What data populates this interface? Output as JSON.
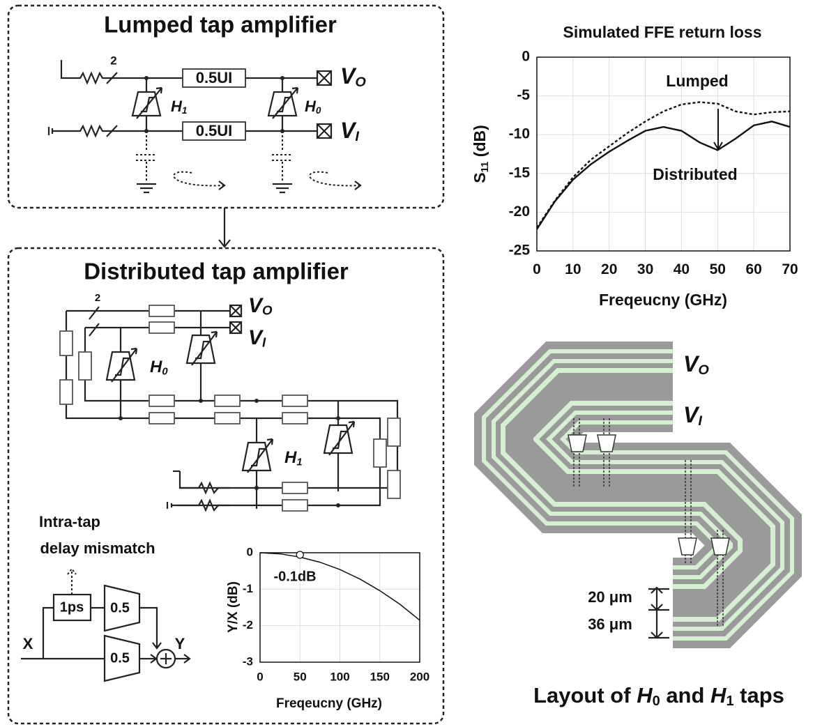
{
  "lumped": {
    "title": "Lumped tap amplifier",
    "bits": "2",
    "delay_top": "0.5UI",
    "delay_bottom": "0.5UI",
    "vo": [
      "V",
      "O"
    ],
    "vi": [
      "V",
      "I"
    ],
    "h1": [
      "H",
      "1"
    ],
    "h0": [
      "H",
      "0"
    ]
  },
  "distributed": {
    "title": "Distributed tap amplifier",
    "bits": "2",
    "vo": [
      "V",
      "O"
    ],
    "vi": [
      "V",
      "I"
    ],
    "h0": [
      "H",
      "0"
    ],
    "h1": [
      "H",
      "1"
    ]
  },
  "mismatch": {
    "caption": [
      "Intra-tap",
      "delay mismatch"
    ],
    "delay": "1ps",
    "gain_top": "0.5",
    "gain_bottom": "0.5",
    "input": "X",
    "output": "Y"
  },
  "layout": {
    "vo": [
      "V",
      "O"
    ],
    "vi": [
      "V",
      "I"
    ],
    "spacing_top": "20 μm",
    "spacing_bottom": "36 μm",
    "title": [
      "Layout of ",
      "H",
      "0",
      " and ",
      "H",
      "1",
      " taps"
    ]
  },
  "chart_data": [
    {
      "type": "line",
      "title": "Simulated FFE return loss",
      "xlabel": "Freqeucny (GHz)",
      "ylabel": [
        "S",
        "11",
        " (dB)"
      ],
      "x": [
        0,
        5,
        10,
        15,
        20,
        25,
        30,
        35,
        40,
        45,
        50,
        55,
        60,
        65,
        70
      ],
      "series": [
        {
          "name": "Lumped",
          "color": "#111111",
          "dashed": true,
          "values": [
            -22,
            -18.5,
            -15.5,
            -13.2,
            -11.5,
            -9.8,
            -8.3,
            -7,
            -6.1,
            -5.8,
            -6,
            -7,
            -7.4,
            -7.1,
            -7
          ]
        },
        {
          "name": "Distributed",
          "color": "#111111",
          "dashed": false,
          "values": [
            -22.2,
            -18.6,
            -15.8,
            -13.8,
            -12.2,
            -10.8,
            -9.5,
            -9,
            -9.5,
            -11,
            -12,
            -10.5,
            -8.8,
            -8.3,
            -9
          ]
        }
      ],
      "xlim": [
        0,
        70
      ],
      "xticks": [
        0,
        10,
        20,
        30,
        40,
        50,
        60,
        70
      ],
      "ylim": [
        -25,
        0
      ],
      "yticks": [
        -25,
        -20,
        -15,
        -10,
        -5,
        0
      ],
      "grid": true
    },
    {
      "type": "line",
      "xlabel": "Freqeucny (GHz)",
      "ylabel": "Y/X (dB)",
      "color": "#111111",
      "x": [
        0,
        25,
        50,
        75,
        100,
        125,
        150,
        175,
        200
      ],
      "values": [
        0,
        -0.03,
        -0.12,
        -0.26,
        -0.46,
        -0.72,
        -1.04,
        -1.41,
        -1.85
      ],
      "marker": {
        "x": 50,
        "y": -0.1,
        "label": "-0.1dB"
      },
      "xlim": [
        0,
        200
      ],
      "xticks": [
        0,
        50,
        100,
        150,
        200
      ],
      "ylim": [
        -3,
        0
      ],
      "yticks": [
        -3,
        -2,
        -1,
        0
      ],
      "grid": true
    }
  ]
}
